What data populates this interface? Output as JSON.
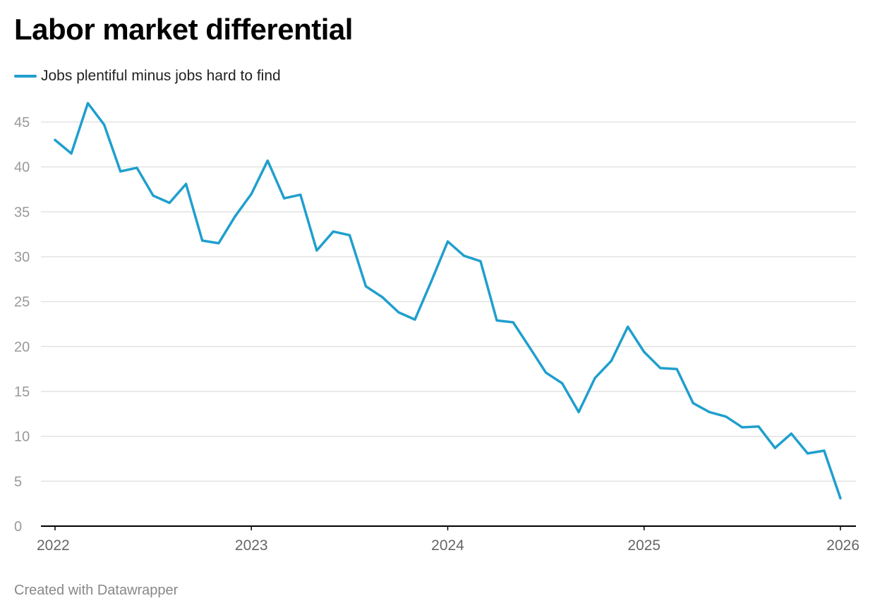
{
  "title": "Labor market differential",
  "footer": "Created with Datawrapper",
  "colors": {
    "line": "#1f9fcd",
    "grid": "#e3e3e3",
    "axis": "#000000",
    "tick_text": "#999999",
    "xtick_text": "#666666"
  },
  "chart_data": {
    "type": "line",
    "title": "Labor market differential",
    "xlabel": "",
    "ylabel": "",
    "ylim": [
      0,
      45
    ],
    "yticks": [
      "0",
      "5",
      "10",
      "15",
      "20",
      "25",
      "30",
      "35",
      "40",
      "45"
    ],
    "xlim": [
      2022,
      2026
    ],
    "xticks": [
      "2022",
      "2023",
      "2024",
      "2025",
      "2026"
    ],
    "grid": true,
    "legend": "top-left",
    "series": [
      {
        "name": "Jobs plentiful minus jobs hard to find",
        "x": [
          2022.0,
          2022.083,
          2022.167,
          2022.25,
          2022.333,
          2022.417,
          2022.5,
          2022.583,
          2022.667,
          2022.75,
          2022.833,
          2022.917,
          2023.0,
          2023.083,
          2023.167,
          2023.25,
          2023.333,
          2023.417,
          2023.5,
          2023.583,
          2023.667,
          2023.75,
          2023.833,
          2023.917,
          2024.0,
          2024.083,
          2024.167,
          2024.25,
          2024.333,
          2024.417,
          2024.5,
          2024.583,
          2024.667,
          2024.75,
          2024.833,
          2024.917,
          2025.0,
          2025.083,
          2025.167,
          2025.25,
          2025.333,
          2025.417,
          2025.5,
          2025.583,
          2025.667,
          2025.75,
          2025.833,
          2025.917,
          2026.0
        ],
        "values": [
          43.0,
          41.5,
          47.1,
          44.7,
          39.5,
          39.9,
          36.8,
          36.0,
          38.1,
          31.8,
          31.5,
          34.5,
          37.0,
          40.7,
          36.5,
          36.9,
          30.7,
          32.8,
          32.4,
          26.7,
          25.5,
          23.8,
          23.0,
          27.3,
          31.7,
          30.1,
          29.5,
          22.9,
          22.7,
          19.9,
          17.1,
          15.9,
          12.7,
          16.5,
          18.4,
          22.2,
          19.4,
          17.6,
          17.5,
          13.7,
          12.7,
          12.2,
          11.0,
          11.1,
          8.7,
          10.3,
          8.1,
          8.4,
          3.1
        ]
      }
    ]
  }
}
